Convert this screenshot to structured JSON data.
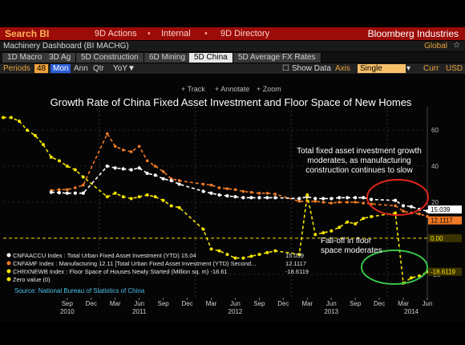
{
  "header": {
    "title": "Search BI",
    "actions": [
      "9D Actions",
      "Internal",
      "9D Directory"
    ],
    "brand": "Bloomberg Industries"
  },
  "crumb": {
    "text": "Machinery Dashboard (BI MACHG)",
    "global": "Global"
  },
  "tabs": [
    "1D Macro",
    "3D Ag",
    "5D Construction",
    "6D Mining",
    "5D China",
    "5D Average FX Rates"
  ],
  "active_tab": "5D China",
  "controls": {
    "periods_label": "Periods",
    "periods_value": "48",
    "mon": "Mon",
    "ann": "Ann",
    "qtr": "Qtr",
    "yoy": "YoY▼",
    "show_data": "Show Data",
    "axis_label": "Axis",
    "axis_value": "Single",
    "curr_label": "Curr",
    "curr_value": "USD"
  },
  "chart_toolbar": [
    "Track",
    "Annotate",
    "Zoom"
  ],
  "colors": {
    "white_series": "#ffffff",
    "orange_series": "#f07a25",
    "yellow_series": "#f3e400",
    "background": "#050505",
    "accent_ellipse_red": "#e1261c",
    "accent_ellipse_green": "#38c44a",
    "zero_line": "#f3e400"
  },
  "chart_data": {
    "type": "line",
    "title": "Growth Rate of China Fixed Asset Investment and Floor Space of New Homes",
    "source": "Source: National Bureau of Statistics of China",
    "ylim": [
      -33,
      73
    ],
    "y_ticks": [
      60,
      40,
      20,
      -20
    ],
    "x_tick_labels": [
      "Sep",
      "Dec",
      "Mar",
      "Jun",
      "Sep",
      "Dec",
      "Mar",
      "Jun",
      "Sep",
      "Dec",
      "Mar",
      "Jun",
      "Sep",
      "Dec",
      "Mar",
      "Jun"
    ],
    "x_year_labels": [
      "2010",
      "2011",
      "2012",
      "2013",
      "2014"
    ],
    "series": [
      {
        "name": "CNFAACCU Index : Total Urban Fixed Asset Investment (YTD) 15.04",
        "legend_value": "15.039",
        "right_label": "15.039",
        "x": [
          "2010-07",
          "2010-08",
          "2010-09",
          "2010-10",
          "2010-11",
          "2011-02",
          "2011-03",
          "2011-04",
          "2011-05",
          "2011-06",
          "2011-07",
          "2011-08",
          "2011-09",
          "2011-10",
          "2011-11",
          "2012-02",
          "2012-03",
          "2012-04",
          "2012-05",
          "2012-06",
          "2012-07",
          "2012-08",
          "2012-09",
          "2012-10",
          "2012-11",
          "2013-02",
          "2013-03",
          "2013-04",
          "2013-05",
          "2013-06",
          "2013-07",
          "2013-08",
          "2013-09",
          "2013-10",
          "2013-11",
          "2014-02",
          "2014-03",
          "2014-04",
          "2014-05",
          "2014-06"
        ],
        "values": [
          25.5,
          25.3,
          25.0,
          25.0,
          25.0,
          40,
          39,
          38.5,
          38,
          39,
          36,
          35,
          33,
          32,
          30,
          26,
          25,
          24,
          23.5,
          23,
          22.5,
          22.5,
          22.5,
          22.5,
          22.5,
          22,
          23,
          22,
          22,
          22,
          22.5,
          22.5,
          22.5,
          22.5,
          21.5,
          21,
          18,
          17.5,
          16,
          15.04
        ]
      },
      {
        "name": "CNFAMF Index : Manufacturing 12.11 [Total Urban Fixed Asset Investment (YTD) Second...",
        "legend_value": "12.1117",
        "right_label": "12.1117",
        "x": [
          "2010-07",
          "2010-08",
          "2010-09",
          "2010-10",
          "2010-11",
          "2011-02",
          "2011-03",
          "2011-04",
          "2011-05",
          "2011-06",
          "2011-07",
          "2011-08",
          "2011-09",
          "2011-10",
          "2011-11",
          "2012-02",
          "2012-03",
          "2012-04",
          "2012-05",
          "2012-06",
          "2012-07",
          "2012-08",
          "2012-09",
          "2012-10",
          "2012-11",
          "2013-02",
          "2013-03",
          "2013-04",
          "2013-05",
          "2013-06",
          "2013-07",
          "2013-08",
          "2013-09",
          "2013-10",
          "2013-11",
          "2014-02",
          "2014-03",
          "2014-04",
          "2014-05",
          "2014-06"
        ],
        "values": [
          26.5,
          27,
          27,
          28,
          29.5,
          58,
          51,
          49,
          48,
          51,
          43,
          40,
          37,
          33,
          32,
          30,
          29.5,
          28,
          27.5,
          27,
          26,
          25.5,
          25,
          25,
          24.5,
          20.5,
          20.5,
          20.5,
          20,
          19.5,
          20,
          20,
          20,
          19.5,
          19,
          18,
          15,
          14,
          13.5,
          12.11
        ]
      },
      {
        "name": "CHRXNEWB Index : Floor Space of Houses Newly Started (Million sq. m) -18.61",
        "legend_value": "-18.6119",
        "right_label": "-18.6119",
        "x": [
          "2010-01",
          "2010-02",
          "2010-03",
          "2010-04",
          "2010-05",
          "2010-06",
          "2010-07",
          "2010-08",
          "2010-09",
          "2010-10",
          "2010-11",
          "2011-02",
          "2011-03",
          "2011-04",
          "2011-05",
          "2011-06",
          "2011-07",
          "2011-08",
          "2011-09",
          "2011-10",
          "2011-11",
          "2012-02",
          "2012-03",
          "2012-04",
          "2012-05",
          "2012-06",
          "2012-07",
          "2012-08",
          "2012-09",
          "2012-10",
          "2012-11",
          "2013-02",
          "2013-03",
          "2013-04",
          "2013-05",
          "2013-06",
          "2013-07",
          "2013-08",
          "2013-09",
          "2013-10",
          "2013-11",
          "2014-02",
          "2014-03",
          "2014-04",
          "2014-05",
          "2014-06"
        ],
        "values": [
          67,
          67,
          65,
          60,
          57,
          52,
          45,
          43,
          40,
          38,
          34,
          23,
          25,
          23,
          22,
          23,
          24,
          23,
          21,
          18,
          17,
          5,
          -6,
          -7,
          -9,
          -11,
          -11,
          -10,
          -9,
          -8,
          -7,
          -9,
          24,
          2,
          3,
          4,
          6,
          9,
          8,
          11,
          12,
          14,
          -25,
          -22,
          -21,
          -18.61
        ]
      },
      {
        "name": "Zero value (0)",
        "legend_value": "",
        "right_label": "0.00",
        "x": [
          "2010-01",
          "2014-06"
        ],
        "values": [
          0,
          0
        ]
      }
    ],
    "annotations": [
      "Total fixed asset investment growth moderates, as manufacturing construction continues to slow",
      "Fall-off in floor space moderates"
    ]
  }
}
